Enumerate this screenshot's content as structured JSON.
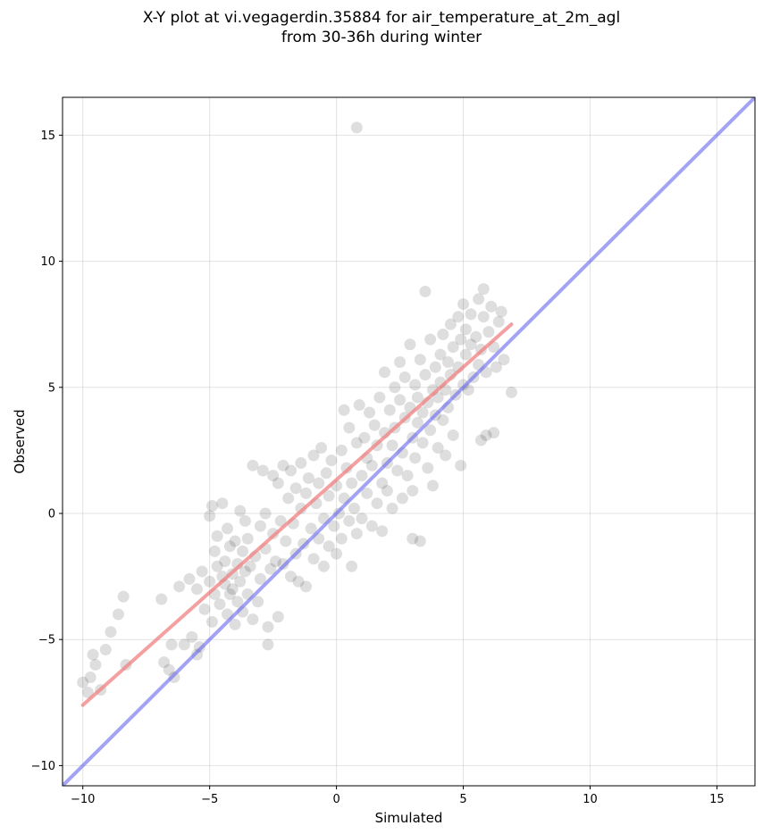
{
  "chart_data": {
    "type": "scatter",
    "title_line1": "X-Y plot at vi.vegagerdin.35884 for air_temperature_at_2m_agl",
    "title_line2": "from 30-36h during winter",
    "xlabel": "Simulated",
    "ylabel": "Observed",
    "xlim": [
      -10.8,
      16.5
    ],
    "ylim": [
      -10.8,
      16.5
    ],
    "xticks": [
      -10,
      -5,
      0,
      5,
      10,
      15
    ],
    "yticks": [
      -10,
      -5,
      0,
      5,
      10,
      15
    ],
    "xtick_labels": [
      "−10",
      "−5",
      "0",
      "5",
      "10",
      "15"
    ],
    "ytick_labels": [
      "−10",
      "−5",
      "0",
      "5",
      "10",
      "15"
    ],
    "grid": true,
    "colors": {
      "points": "#000000",
      "regression_line": "#f08080",
      "identity_line": "#6666ee"
    },
    "series": [
      {
        "type": "scatter",
        "points": [
          [
            -10.0,
            -6.7
          ],
          [
            -9.8,
            -7.1
          ],
          [
            -9.7,
            -6.5
          ],
          [
            -9.6,
            -5.6
          ],
          [
            -9.5,
            -6.0
          ],
          [
            -9.3,
            -7.0
          ],
          [
            -9.1,
            -5.4
          ],
          [
            -8.9,
            -4.7
          ],
          [
            -8.6,
            -4.0
          ],
          [
            -8.4,
            -3.3
          ],
          [
            -8.3,
            -6.0
          ],
          [
            -6.9,
            -3.4
          ],
          [
            -6.8,
            -5.9
          ],
          [
            -6.6,
            -6.2
          ],
          [
            -6.5,
            -5.2
          ],
          [
            -6.4,
            -6.5
          ],
          [
            -6.2,
            -2.9
          ],
          [
            -6.0,
            -5.2
          ],
          [
            -5.8,
            -2.6
          ],
          [
            -5.7,
            -4.9
          ],
          [
            -5.5,
            -3.0
          ],
          [
            -5.5,
            -5.6
          ],
          [
            -5.4,
            -5.3
          ],
          [
            -5.3,
            -2.3
          ],
          [
            -5.2,
            -3.8
          ],
          [
            -5.0,
            -0.1
          ],
          [
            -5.0,
            -2.7
          ],
          [
            -4.9,
            -4.3
          ],
          [
            -4.9,
            0.3
          ],
          [
            -4.8,
            -1.5
          ],
          [
            -4.8,
            -3.2
          ],
          [
            -4.7,
            -2.1
          ],
          [
            -4.7,
            -0.9
          ],
          [
            -4.6,
            -3.6
          ],
          [
            -4.5,
            -2.5
          ],
          [
            -4.5,
            0.4
          ],
          [
            -4.4,
            -1.9
          ],
          [
            -4.4,
            -2.8
          ],
          [
            -4.3,
            -4.0
          ],
          [
            -4.3,
            -0.6
          ],
          [
            -4.2,
            -3.2
          ],
          [
            -4.2,
            -1.3
          ],
          [
            -4.1,
            -2.4
          ],
          [
            -4.1,
            -3.0
          ],
          [
            -4.0,
            -1.1
          ],
          [
            -4.0,
            -4.4
          ],
          [
            -3.9,
            -2.0
          ],
          [
            -3.9,
            -3.5
          ],
          [
            -3.8,
            0.1
          ],
          [
            -3.8,
            -2.7
          ],
          [
            -3.7,
            -1.5
          ],
          [
            -3.7,
            -3.9
          ],
          [
            -3.6,
            -2.3
          ],
          [
            -3.6,
            -0.3
          ],
          [
            -3.5,
            -3.2
          ],
          [
            -3.5,
            -1.0
          ],
          [
            -3.4,
            -2.1
          ],
          [
            -3.3,
            -4.2
          ],
          [
            -3.3,
            1.9
          ],
          [
            -3.2,
            -1.7
          ],
          [
            -3.1,
            -3.5
          ],
          [
            -3.0,
            -0.5
          ],
          [
            -3.0,
            -2.6
          ],
          [
            -2.9,
            1.7
          ],
          [
            -2.8,
            -1.4
          ],
          [
            -2.8,
            0.0
          ],
          [
            -2.7,
            -4.5
          ],
          [
            -2.7,
            -5.2
          ],
          [
            -2.6,
            -2.2
          ],
          [
            -2.5,
            1.5
          ],
          [
            -2.5,
            -0.8
          ],
          [
            -2.4,
            -1.9
          ],
          [
            -2.3,
            -4.1
          ],
          [
            -2.3,
            1.2
          ],
          [
            -2.2,
            -0.3
          ],
          [
            -2.1,
            -2.0
          ],
          [
            -2.1,
            1.9
          ],
          [
            -2.0,
            -1.1
          ],
          [
            -1.9,
            0.6
          ],
          [
            -1.8,
            -2.5
          ],
          [
            -1.8,
            1.7
          ],
          [
            -1.7,
            -0.4
          ],
          [
            -1.6,
            -1.6
          ],
          [
            -1.6,
            1.0
          ],
          [
            -1.5,
            -2.7
          ],
          [
            -1.4,
            0.2
          ],
          [
            -1.4,
            2.0
          ],
          [
            -1.3,
            -1.2
          ],
          [
            -1.2,
            0.8
          ],
          [
            -1.2,
            -2.9
          ],
          [
            -1.1,
            1.4
          ],
          [
            -1.0,
            -0.6
          ],
          [
            -0.9,
            2.3
          ],
          [
            -0.9,
            -1.8
          ],
          [
            -0.8,
            0.4
          ],
          [
            -0.7,
            1.2
          ],
          [
            -0.7,
            -1.0
          ],
          [
            -0.6,
            2.6
          ],
          [
            -0.5,
            -0.2
          ],
          [
            -0.5,
            -2.1
          ],
          [
            -0.4,
            1.6
          ],
          [
            -0.3,
            -1.3
          ],
          [
            -0.3,
            0.7
          ],
          [
            -0.2,
            2.1
          ],
          [
            -0.1,
            -0.5
          ],
          [
            0.0,
            1.1
          ],
          [
            0.0,
            -1.6
          ],
          [
            0.1,
            0.0
          ],
          [
            0.2,
            2.5
          ],
          [
            0.2,
            -1.0
          ],
          [
            0.3,
            0.6
          ],
          [
            0.3,
            4.1
          ],
          [
            0.4,
            1.8
          ],
          [
            0.5,
            -0.3
          ],
          [
            0.5,
            3.4
          ],
          [
            0.6,
            1.2
          ],
          [
            0.6,
            -2.1
          ],
          [
            0.7,
            0.2
          ],
          [
            0.8,
            2.8
          ],
          [
            0.8,
            -0.8
          ],
          [
            0.8,
            15.3
          ],
          [
            0.9,
            4.3
          ],
          [
            1.0,
            1.5
          ],
          [
            1.0,
            -0.2
          ],
          [
            1.1,
            3.0
          ],
          [
            1.2,
            0.8
          ],
          [
            1.2,
            2.2
          ],
          [
            1.3,
            4.0
          ],
          [
            1.4,
            -0.5
          ],
          [
            1.4,
            1.9
          ],
          [
            1.5,
            3.5
          ],
          [
            1.6,
            0.4
          ],
          [
            1.6,
            2.7
          ],
          [
            1.7,
            4.6
          ],
          [
            1.8,
            1.2
          ],
          [
            1.8,
            -0.7
          ],
          [
            1.9,
            3.2
          ],
          [
            1.9,
            5.6
          ],
          [
            2.0,
            2.0
          ],
          [
            2.0,
            0.9
          ],
          [
            2.1,
            4.1
          ],
          [
            2.2,
            2.7
          ],
          [
            2.2,
            0.2
          ],
          [
            2.3,
            5.0
          ],
          [
            2.3,
            3.4
          ],
          [
            2.4,
            1.7
          ],
          [
            2.5,
            4.5
          ],
          [
            2.5,
            6.0
          ],
          [
            2.6,
            2.4
          ],
          [
            2.6,
            0.6
          ],
          [
            2.7,
            3.8
          ],
          [
            2.7,
            5.4
          ],
          [
            2.8,
            1.5
          ],
          [
            2.9,
            4.2
          ],
          [
            2.9,
            6.7
          ],
          [
            3.0,
            3.0
          ],
          [
            3.0,
            0.9
          ],
          [
            3.0,
            -1.0
          ],
          [
            3.1,
            5.1
          ],
          [
            3.1,
            2.2
          ],
          [
            3.2,
            4.6
          ],
          [
            3.2,
            3.6
          ],
          [
            3.3,
            6.1
          ],
          [
            3.3,
            -1.1
          ],
          [
            3.4,
            4.0
          ],
          [
            3.4,
            2.8
          ],
          [
            3.5,
            8.8
          ],
          [
            3.5,
            5.5
          ],
          [
            3.6,
            4.4
          ],
          [
            3.6,
            1.8
          ],
          [
            3.7,
            3.3
          ],
          [
            3.7,
            6.9
          ],
          [
            3.8,
            4.9
          ],
          [
            3.8,
            1.1
          ],
          [
            3.9,
            5.8
          ],
          [
            3.9,
            3.9
          ],
          [
            4.0,
            4.6
          ],
          [
            4.0,
            2.6
          ],
          [
            4.1,
            6.3
          ],
          [
            4.1,
            5.2
          ],
          [
            4.2,
            3.7
          ],
          [
            4.2,
            7.1
          ],
          [
            4.3,
            4.9
          ],
          [
            4.3,
            2.3
          ],
          [
            4.4,
            6.0
          ],
          [
            4.4,
            4.2
          ],
          [
            4.5,
            7.5
          ],
          [
            4.5,
            5.5
          ],
          [
            4.6,
            3.1
          ],
          [
            4.6,
            6.6
          ],
          [
            4.7,
            4.7
          ],
          [
            4.8,
            7.8
          ],
          [
            4.8,
            5.8
          ],
          [
            4.9,
            1.9
          ],
          [
            4.9,
            6.9
          ],
          [
            5.0,
            5.1
          ],
          [
            5.0,
            8.3
          ],
          [
            5.1,
            6.3
          ],
          [
            5.1,
            7.3
          ],
          [
            5.2,
            4.9
          ],
          [
            5.3,
            6.7
          ],
          [
            5.3,
            7.9
          ],
          [
            5.4,
            5.4
          ],
          [
            5.5,
            7.0
          ],
          [
            5.6,
            5.9
          ],
          [
            5.6,
            8.5
          ],
          [
            5.7,
            6.5
          ],
          [
            5.7,
            2.9
          ],
          [
            5.8,
            7.8
          ],
          [
            5.8,
            8.9
          ],
          [
            5.9,
            5.6
          ],
          [
            5.9,
            3.1
          ],
          [
            6.0,
            7.2
          ],
          [
            6.1,
            8.2
          ],
          [
            6.2,
            6.6
          ],
          [
            6.2,
            3.2
          ],
          [
            6.3,
            5.8
          ],
          [
            6.4,
            7.6
          ],
          [
            6.5,
            8.0
          ],
          [
            6.6,
            6.1
          ],
          [
            6.9,
            4.8
          ]
        ]
      },
      {
        "type": "regression",
        "x": [
          -10.0,
          6.9
        ],
        "y": [
          -7.6,
          7.5
        ]
      },
      {
        "type": "identity",
        "x": [
          -10.8,
          16.5
        ],
        "y": [
          -10.8,
          16.5
        ]
      }
    ]
  }
}
